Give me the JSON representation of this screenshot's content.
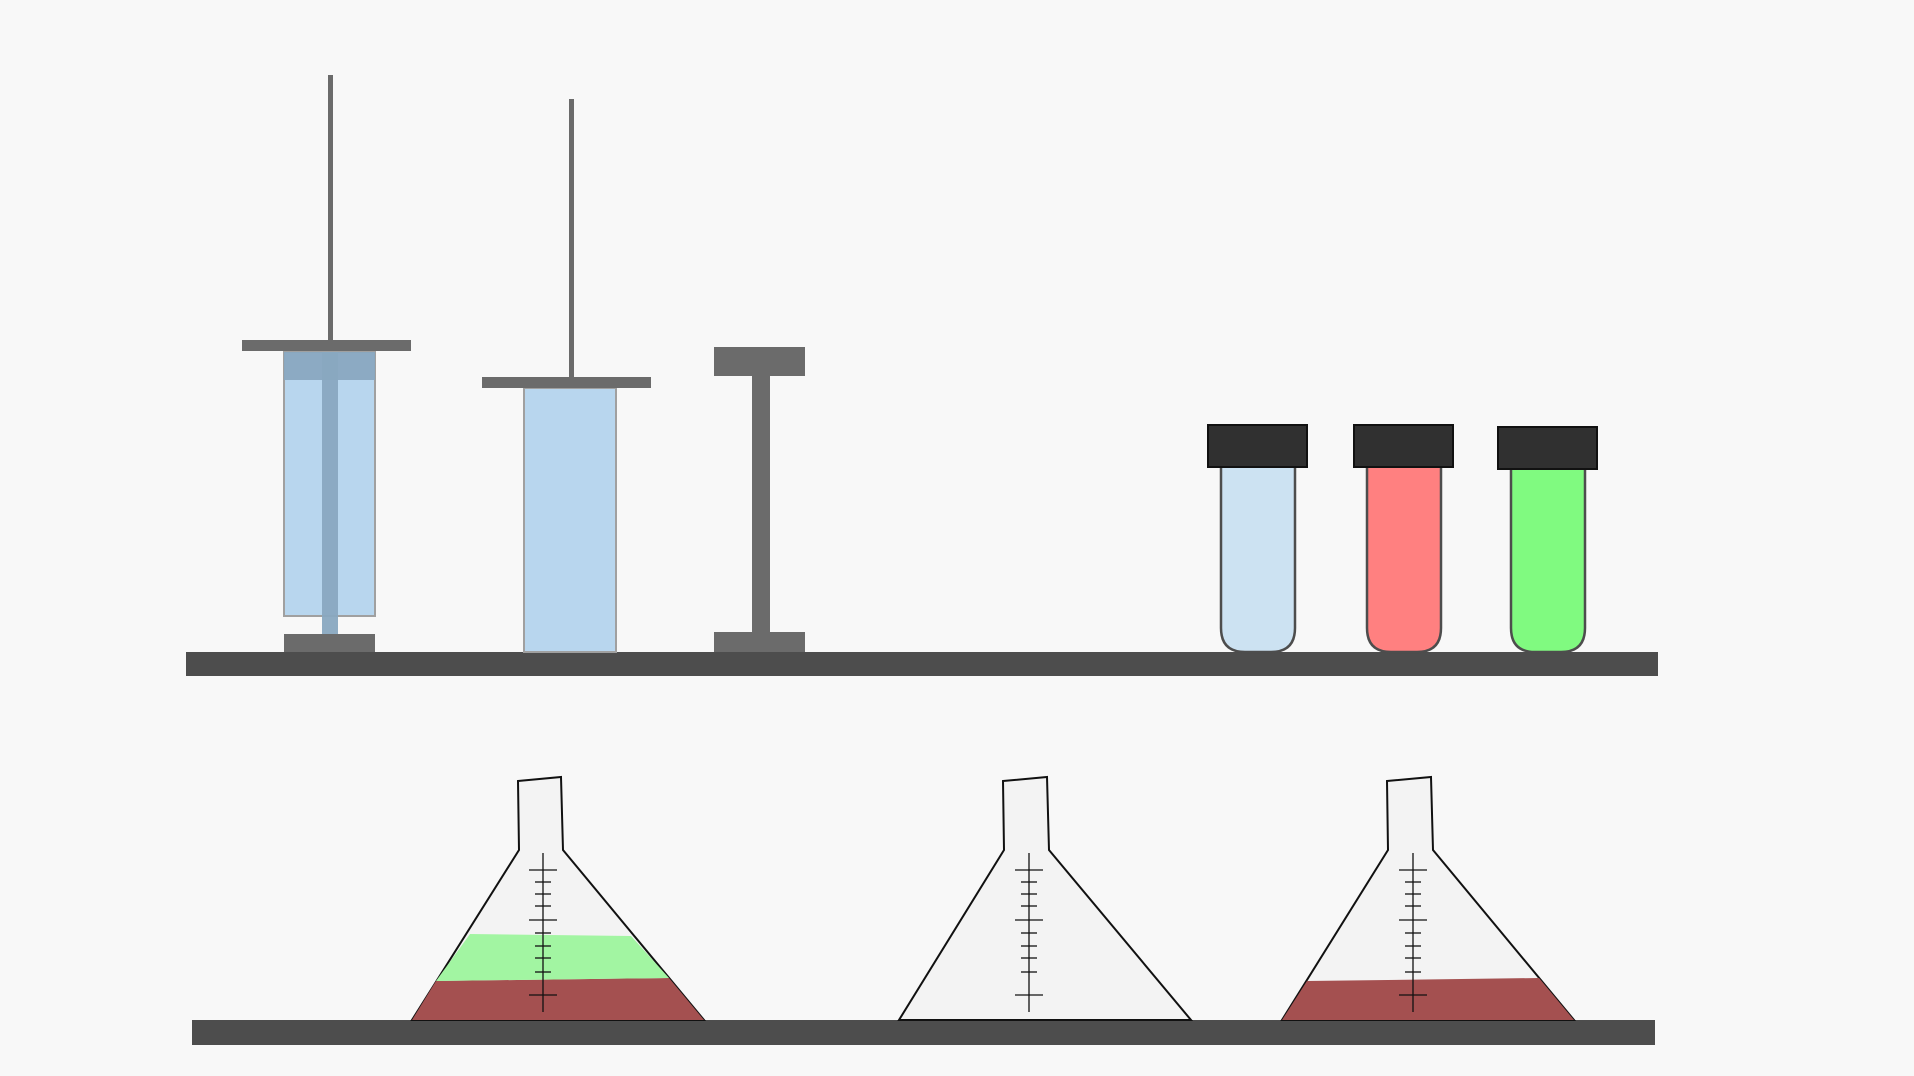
{
  "scene": {
    "background_color": "#f8f8f8",
    "shelf_color": "#4d4d4d",
    "syringe_plunger_color": "#6b6b6b",
    "syringe_liquid_color": "#b8d6ee",
    "syringe_plunger_overlay_color": "#89a8c0"
  },
  "top_shelf": {
    "syringes": [
      {
        "name": "syringe-1",
        "state": "filled, plunger pressed"
      },
      {
        "name": "syringe-2",
        "state": "filled, plunger pulled"
      },
      {
        "name": "syringe-3",
        "state": "empty"
      }
    ],
    "test_tubes": [
      {
        "name": "test-tube-blue",
        "liquid_color": "#cce2f2",
        "cap_color": "#303030"
      },
      {
        "name": "test-tube-red",
        "liquid_color": "#ff8080",
        "cap_color": "#303030"
      },
      {
        "name": "test-tube-green",
        "liquid_color": "#80fa80",
        "cap_color": "#303030"
      }
    ]
  },
  "bottom_shelf": {
    "flasks": [
      {
        "name": "flask-1",
        "glass_color": "#f3f3f3",
        "layers": [
          {
            "color": "#a45050",
            "level": "bottom"
          },
          {
            "color": "#a2f5a2",
            "level": "middle"
          }
        ]
      },
      {
        "name": "flask-2",
        "glass_color": "#f3f3f3",
        "layers": []
      },
      {
        "name": "flask-3",
        "glass_color": "#f3f3f3",
        "layers": [
          {
            "color": "#a45050",
            "level": "bottom"
          }
        ]
      }
    ]
  }
}
